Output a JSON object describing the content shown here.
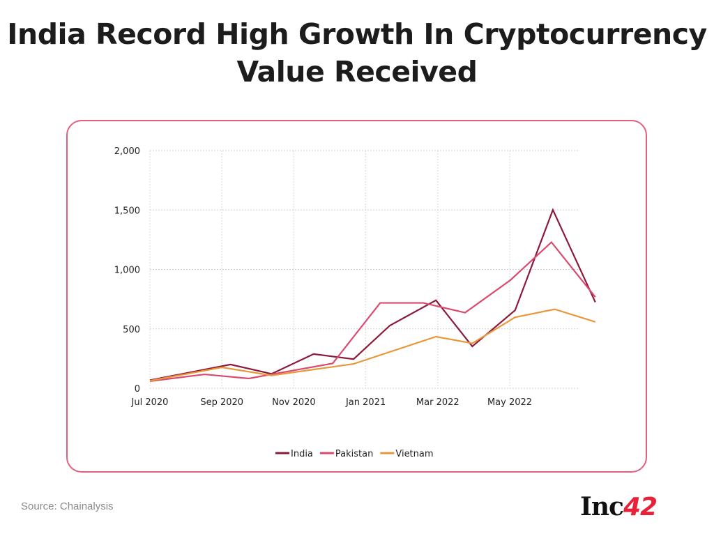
{
  "chart_data": {
    "type": "line",
    "title": "India Record High Growth In Cryptocurrency Value Received",
    "source": "Source: Chainalysis",
    "logo": "Inc42",
    "x_ticks": [
      {
        "x": 0,
        "label": "Jul 2020"
      },
      {
        "x": 2,
        "label": "Sep 2020"
      },
      {
        "x": 4,
        "label": "Nov 2020"
      },
      {
        "x": 6,
        "label": "Jan 2021"
      },
      {
        "x": 8,
        "label": "Mar 2022"
      },
      {
        "x": 10,
        "label": "May 2022"
      }
    ],
    "xlim": [
      0,
      12.4
    ],
    "ylim": [
      0,
      2000
    ],
    "y_ticks": [
      0,
      500,
      1000,
      1500,
      2000
    ],
    "y_tick_labels": [
      "0",
      "500",
      "1,000",
      "1,500",
      "2,000"
    ],
    "grid": true,
    "legend_position": "bottom",
    "series": [
      {
        "name": "India",
        "color": "#8b1a3a",
        "x": [
          0,
          2.24,
          3.38,
          4.55,
          5.66,
          6.67,
          7.95,
          8.96,
          10.15,
          11.2,
          12.38
        ],
        "values": [
          68,
          200,
          121,
          288,
          245,
          528,
          740,
          352,
          656,
          1501,
          724
        ]
      },
      {
        "name": "Pakistan",
        "color": "#d94a6e",
        "x": [
          0,
          1.52,
          2.75,
          3.38,
          5.08,
          6.4,
          7.6,
          8.76,
          10.02,
          11.16,
          12.38
        ],
        "values": [
          59,
          117,
          82,
          117,
          209,
          718,
          718,
          636,
          910,
          1229,
          767
        ]
      },
      {
        "name": "Vietnam",
        "color": "#e8973a",
        "x": [
          0,
          2.0,
          3.38,
          5.66,
          7.95,
          8.96,
          10.15,
          11.25,
          12.38
        ],
        "values": [
          63,
          176,
          108,
          205,
          434,
          378,
          597,
          665,
          558
        ]
      }
    ]
  }
}
